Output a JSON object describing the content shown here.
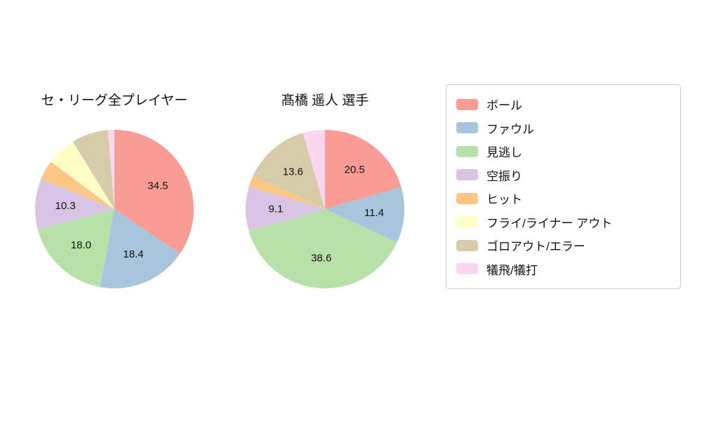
{
  "figure": {
    "background": "#ffffff"
  },
  "chart_data": [
    {
      "type": "pie",
      "title": "セ・リーグ全プレイヤー",
      "direction": "clockwise",
      "start_angle_deg": 0,
      "radius": 113,
      "slices": [
        {
          "category": "ボール",
          "value": 34.5,
          "label": "34.5"
        },
        {
          "category": "ファウル",
          "value": 18.4,
          "label": "18.4"
        },
        {
          "category": "見逃し",
          "value": 18.0,
          "label": "18.0"
        },
        {
          "category": "空振り",
          "value": 10.3,
          "label": "10.3"
        },
        {
          "category": "ヒット",
          "value": 4.0,
          "label": ""
        },
        {
          "category": "フライ/ライナー アウト",
          "value": 6.0,
          "label": ""
        },
        {
          "category": "ゴロアウト/エラー",
          "value": 7.5,
          "label": ""
        },
        {
          "category": "犠飛/犠打",
          "value": 1.3,
          "label": ""
        }
      ]
    },
    {
      "type": "pie",
      "title": "髙橋 遥人 選手",
      "direction": "clockwise",
      "start_angle_deg": 0,
      "radius": 113,
      "slices": [
        {
          "category": "ボール",
          "value": 20.5,
          "label": "20.5"
        },
        {
          "category": "ファウル",
          "value": 11.4,
          "label": "11.4"
        },
        {
          "category": "見逃し",
          "value": 38.6,
          "label": "38.6"
        },
        {
          "category": "空振り",
          "value": 9.1,
          "label": "9.1"
        },
        {
          "category": "ヒット",
          "value": 2.3,
          "label": ""
        },
        {
          "category": "フライ/ライナー アウト",
          "value": 0,
          "label": ""
        },
        {
          "category": "ゴロアウト/エラー",
          "value": 13.6,
          "label": "13.6"
        },
        {
          "category": "犠飛/犠打",
          "value": 4.5,
          "label": ""
        }
      ]
    }
  ],
  "legend": {
    "items": [
      {
        "label": "ボール",
        "color": "#F99C95"
      },
      {
        "label": "ファウル",
        "color": "#A7C5DD"
      },
      {
        "label": "見逃し",
        "color": "#B7E1A8"
      },
      {
        "label": "空振り",
        "color": "#D8C5E5"
      },
      {
        "label": "ヒット",
        "color": "#FAC784"
      },
      {
        "label": "フライ/ライナー アウト",
        "color": "#FFFFC5"
      },
      {
        "label": "ゴロアウト/エラー",
        "color": "#D7CCA9"
      },
      {
        "label": "犠飛/犠打",
        "color": "#FBD8EF"
      }
    ]
  }
}
